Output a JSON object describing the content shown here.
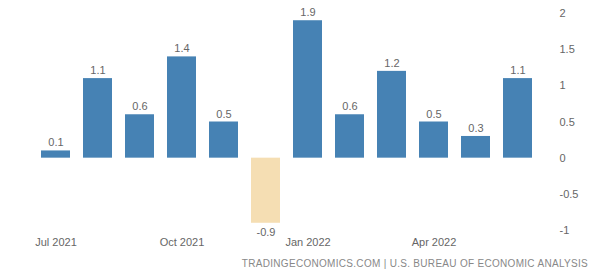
{
  "chart_data": {
    "type": "bar",
    "caption": "TRADINGECONOMICS.COM | U.S. BUREAU OF ECONOMIC ANALYSIS",
    "categories": [
      "Jul 2021",
      null,
      null,
      "Oct 2021",
      null,
      null,
      "Jan 2022",
      null,
      null,
      "Apr 2022",
      null,
      null
    ],
    "values": [
      0.1,
      1.1,
      0.6,
      1.4,
      0.5,
      -0.9,
      1.9,
      0.6,
      1.2,
      0.5,
      0.3,
      1.1
    ],
    "colors": [
      "#4682b4",
      "#4682b4",
      "#4682b4",
      "#4682b4",
      "#4682b4",
      "#f5deb3",
      "#4682b4",
      "#4682b4",
      "#4682b4",
      "#4682b4",
      "#4682b4",
      "#4682b4"
    ],
    "ylim": [
      -1,
      2
    ],
    "yticks": [
      -1,
      -0.5,
      0,
      0.5,
      1,
      1.5,
      2
    ],
    "grid": false,
    "data_labels": true
  }
}
